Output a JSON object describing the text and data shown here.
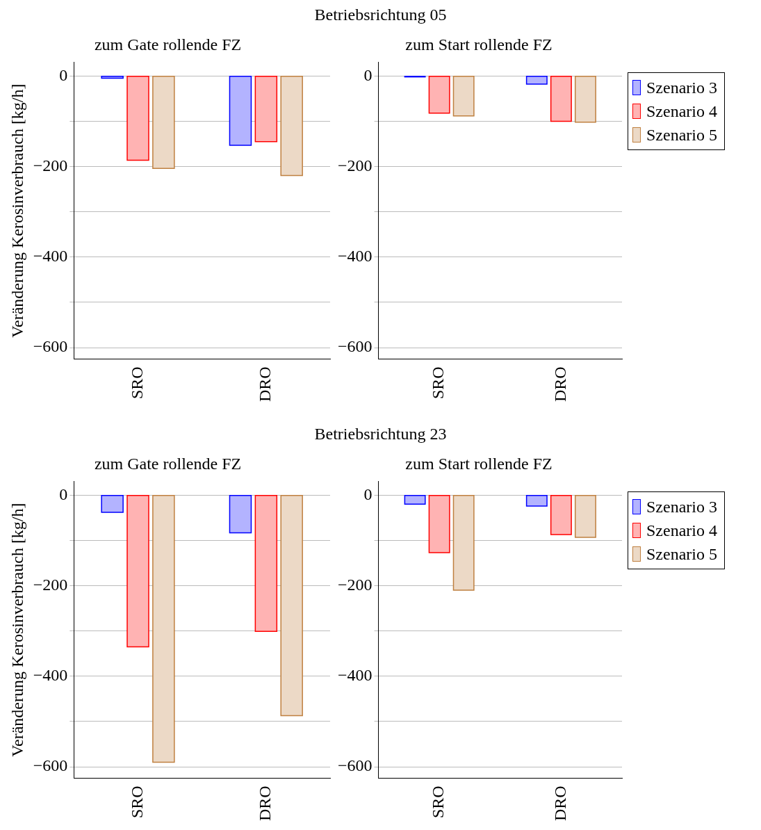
{
  "chart_data": [
    {
      "type": "bar",
      "title": "zum Gate rollende FZ",
      "annotations": [
        "Betriebsrichtung 05"
      ],
      "ylabel": "Veränderung Kerosinverbrauch [kg/h]",
      "categories": [
        "SRO",
        "DRO"
      ],
      "ylim": [
        -625,
        30
      ],
      "yticks": [
        0,
        {
          "value": -100,
          "label": null
        },
        -200,
        {
          "value": -300,
          "label": null
        },
        -400,
        {
          "value": -500,
          "label": null
        },
        -600
      ],
      "grid": "y",
      "legend": false,
      "series": [
        {
          "color": "#0000ff",
          "values": [
            -5,
            -153
          ]
        },
        {
          "color": "#ff0000",
          "values": [
            -186,
            -145
          ]
        },
        {
          "color": "#bf8040",
          "values": [
            -204,
            -220
          ]
        }
      ]
    },
    {
      "type": "bar",
      "title": "zum Start rollende FZ",
      "categories": [
        "SRO",
        "DRO"
      ],
      "ylim": [
        -625,
        30
      ],
      "yticks": [
        0,
        {
          "value": -100,
          "label": null
        },
        -200,
        {
          "value": -300,
          "label": null
        },
        -400,
        {
          "value": -500,
          "label": null
        },
        -600
      ],
      "grid": "y",
      "legend": "right",
      "series": [
        {
          "name": "Szenario 3",
          "color": "#0000ff",
          "values": [
            -2,
            -18
          ]
        },
        {
          "name": "Szenario 4",
          "color": "#ff0000",
          "values": [
            -82,
            -100
          ]
        },
        {
          "name": "Szenario 5",
          "color": "#bf8040",
          "values": [
            -88,
            -102
          ]
        }
      ]
    },
    {
      "type": "bar",
      "title": "zum Gate rollende FZ",
      "annotations": [
        "Betriebsrichtung 23"
      ],
      "ylabel": "Veränderung Kerosinverbrauch [kg/h]",
      "categories": [
        "SRO",
        "DRO"
      ],
      "ylim": [
        -625,
        30
      ],
      "yticks": [
        0,
        {
          "value": -100,
          "label": null
        },
        -200,
        {
          "value": -300,
          "label": null
        },
        -400,
        {
          "value": -500,
          "label": null
        },
        -600
      ],
      "grid": "y",
      "legend": false,
      "series": [
        {
          "color": "#0000ff",
          "values": [
            -38,
            -83
          ]
        },
        {
          "color": "#ff0000",
          "values": [
            -335,
            -301
          ]
        },
        {
          "color": "#bf8040",
          "values": [
            -590,
            -487
          ]
        }
      ]
    },
    {
      "type": "bar",
      "title": "zum Start rollende FZ",
      "categories": [
        "SRO",
        "DRO"
      ],
      "ylim": [
        -625,
        30
      ],
      "yticks": [
        0,
        {
          "value": -100,
          "label": null
        },
        -200,
        {
          "value": -300,
          "label": null
        },
        -400,
        {
          "value": -500,
          "label": null
        },
        -600
      ],
      "grid": "y",
      "legend": "right",
      "series": [
        {
          "name": "Szenario 3",
          "color": "#0000ff",
          "values": [
            -20,
            -24
          ]
        },
        {
          "name": "Szenario 4",
          "color": "#ff0000",
          "values": [
            -127,
            -87
          ]
        },
        {
          "name": "Szenario 5",
          "color": "#bf8040",
          "values": [
            -210,
            -93
          ]
        }
      ]
    }
  ]
}
